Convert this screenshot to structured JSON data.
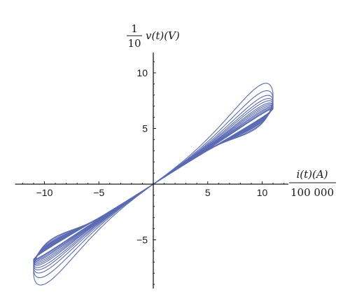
{
  "chart_data": {
    "type": "line",
    "title": "",
    "ylabel": {
      "fraction_numerator": "1",
      "fraction_denominator": "10",
      "text": "v(t)(V)"
    },
    "xlabel": {
      "text": "i(t)(A)",
      "denominator": "100 000"
    },
    "xlim": [
      -12.5,
      12.5
    ],
    "ylim": [
      -10,
      11.5
    ],
    "x_ticks": [
      -10,
      -5,
      5,
      10
    ],
    "y_ticks": [
      -5,
      5,
      10
    ],
    "x_tick_labels": [
      "−10",
      "−5",
      "5",
      "10"
    ],
    "y_tick_labels": [
      "−5",
      "5",
      "10"
    ],
    "grid": false,
    "legend": "none",
    "series_color": "#5b6bb3",
    "series": [
      {
        "x_max": 11,
        "y_at_xmax": 10.5,
        "y_at_xmax_lower": 5.4
      },
      {
        "x_max": 11,
        "y_at_xmax": 9.6,
        "y_at_xmax_lower": 5.6
      },
      {
        "x_max": 11,
        "y_at_xmax": 9.0,
        "y_at_xmax_lower": 5.8
      },
      {
        "x_max": 11,
        "y_at_xmax": 8.6,
        "y_at_xmax_lower": 5.9
      },
      {
        "x_max": 11,
        "y_at_xmax": 8.3,
        "y_at_xmax_lower": 6.0
      },
      {
        "x_max": 11,
        "y_at_xmax": 8.0,
        "y_at_xmax_lower": 6.1
      },
      {
        "x_max": 11,
        "y_at_xmax": 7.8,
        "y_at_xmax_lower": 6.2
      },
      {
        "x_max": 11,
        "y_at_xmax": 7.6,
        "y_at_xmax_lower": 6.3
      },
      {
        "x_max": 11,
        "y_at_xmax": 7.4,
        "y_at_xmax_lower": 6.4
      },
      {
        "x_max": 11,
        "y_at_xmax": 7.25,
        "y_at_xmax_lower": 6.45
      },
      {
        "x_max": 11,
        "y_at_xmax": 7.1,
        "y_at_xmax_lower": 6.5
      },
      {
        "x_max": 11,
        "y_at_xmax": 7.0,
        "y_at_xmax_lower": 6.55
      }
    ]
  }
}
